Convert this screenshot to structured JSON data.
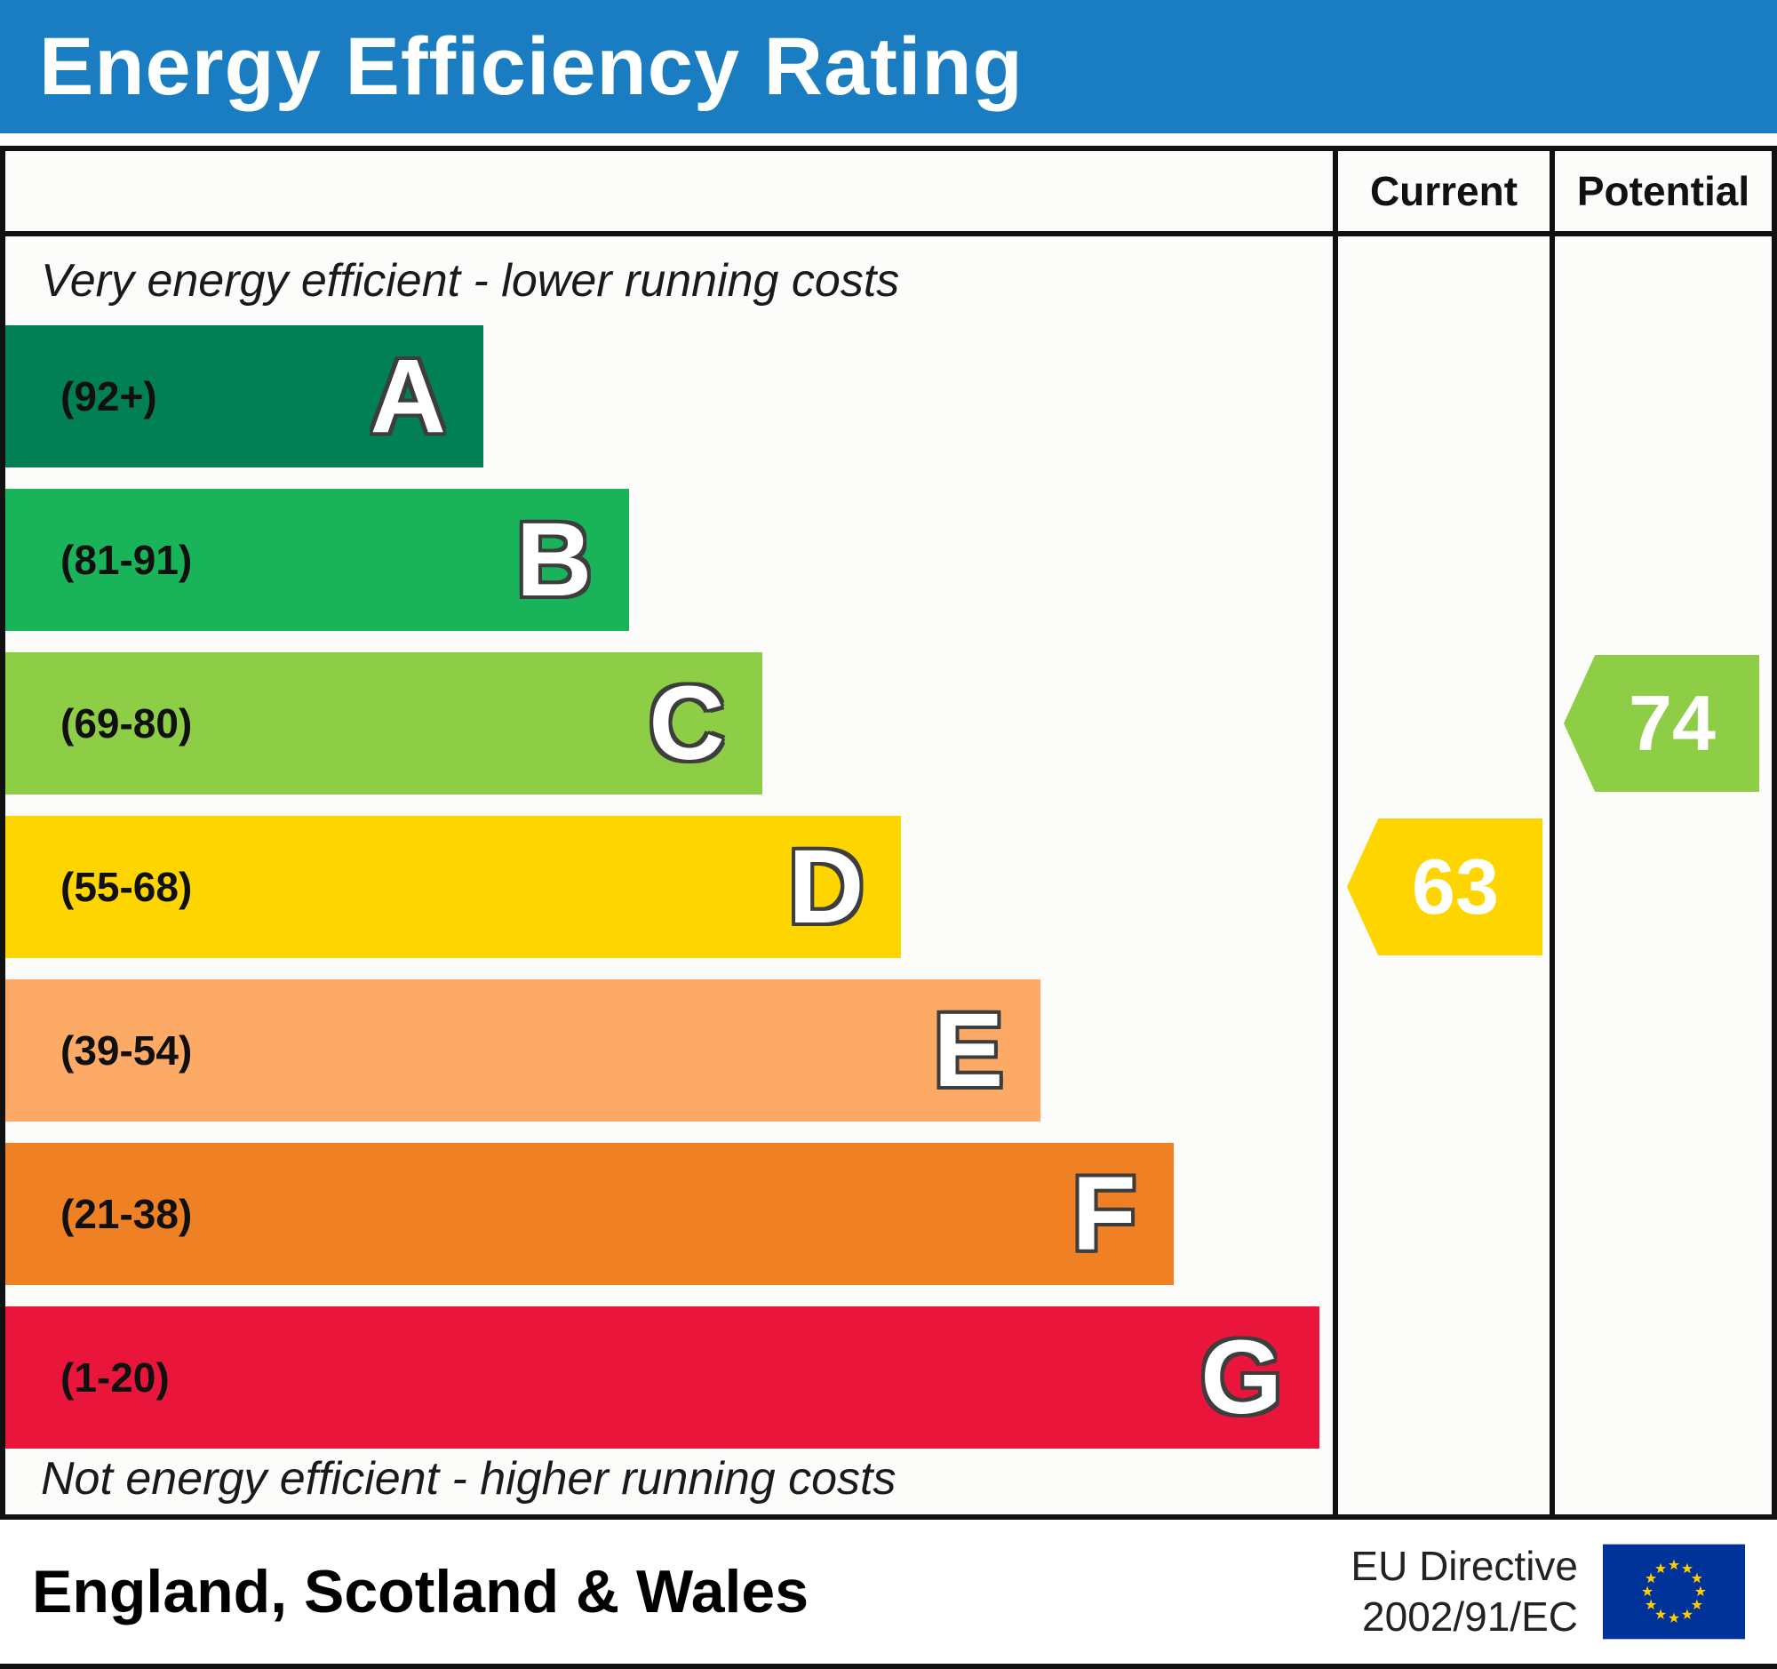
{
  "header": {
    "title": "Energy Efficiency Rating",
    "background": "#1b7dc1"
  },
  "table": {
    "columns": {
      "current": "Current",
      "potential": "Potential"
    },
    "top_note": "Very energy efficient - lower running costs",
    "bottom_note": "Not energy efficient - higher running costs"
  },
  "bands": [
    {
      "letter": "A",
      "range": "(92+)",
      "color": "#008054",
      "width_pct": 36
    },
    {
      "letter": "B",
      "range": "(81-91)",
      "color": "#19b459",
      "width_pct": 47
    },
    {
      "letter": "C",
      "range": "(69-80)",
      "color": "#8dce46",
      "width_pct": 57
    },
    {
      "letter": "D",
      "range": "(55-68)",
      "color": "#ffd500",
      "width_pct": 67.5
    },
    {
      "letter": "E",
      "range": "(39-54)",
      "color": "#fcaa65",
      "width_pct": 78
    },
    {
      "letter": "F",
      "range": "(21-38)",
      "color": "#ef8023",
      "width_pct": 88
    },
    {
      "letter": "G",
      "range": "(1-20)",
      "color": "#e9153b",
      "width_pct": 99
    }
  ],
  "ratings": {
    "current": {
      "value": "63",
      "band": "D",
      "color": "#ffd500"
    },
    "potential": {
      "value": "74",
      "band": "C",
      "color": "#8dce46"
    }
  },
  "footer": {
    "region": "England, Scotland & Wales",
    "directive": [
      "EU Directive",
      "2002/91/EC"
    ],
    "eu_flag": {
      "background": "#003399",
      "star_color": "#ffcc00"
    }
  },
  "chart_data": {
    "type": "bar",
    "title": "Energy Efficiency Rating",
    "categories": [
      "A",
      "B",
      "C",
      "D",
      "E",
      "F",
      "G"
    ],
    "ranges": [
      "92+",
      "81-91",
      "69-80",
      "55-68",
      "39-54",
      "21-38",
      "1-20"
    ],
    "bar_lengths_pct": [
      36,
      47,
      57,
      67.5,
      78,
      88,
      99
    ],
    "colors": [
      "#008054",
      "#19b459",
      "#8dce46",
      "#ffd500",
      "#fcaa65",
      "#ef8023",
      "#e9153b"
    ],
    "series": [
      {
        "name": "Current",
        "value": 63,
        "band": "D",
        "color": "#ffd500"
      },
      {
        "name": "Potential",
        "value": 74,
        "band": "C",
        "color": "#8dce46"
      }
    ],
    "annotations": [
      "Very energy efficient - lower running costs",
      "Not energy efficient - higher running costs"
    ],
    "legend_position": "none",
    "footer": "England, Scotland & Wales — EU Directive 2002/91/EC"
  }
}
